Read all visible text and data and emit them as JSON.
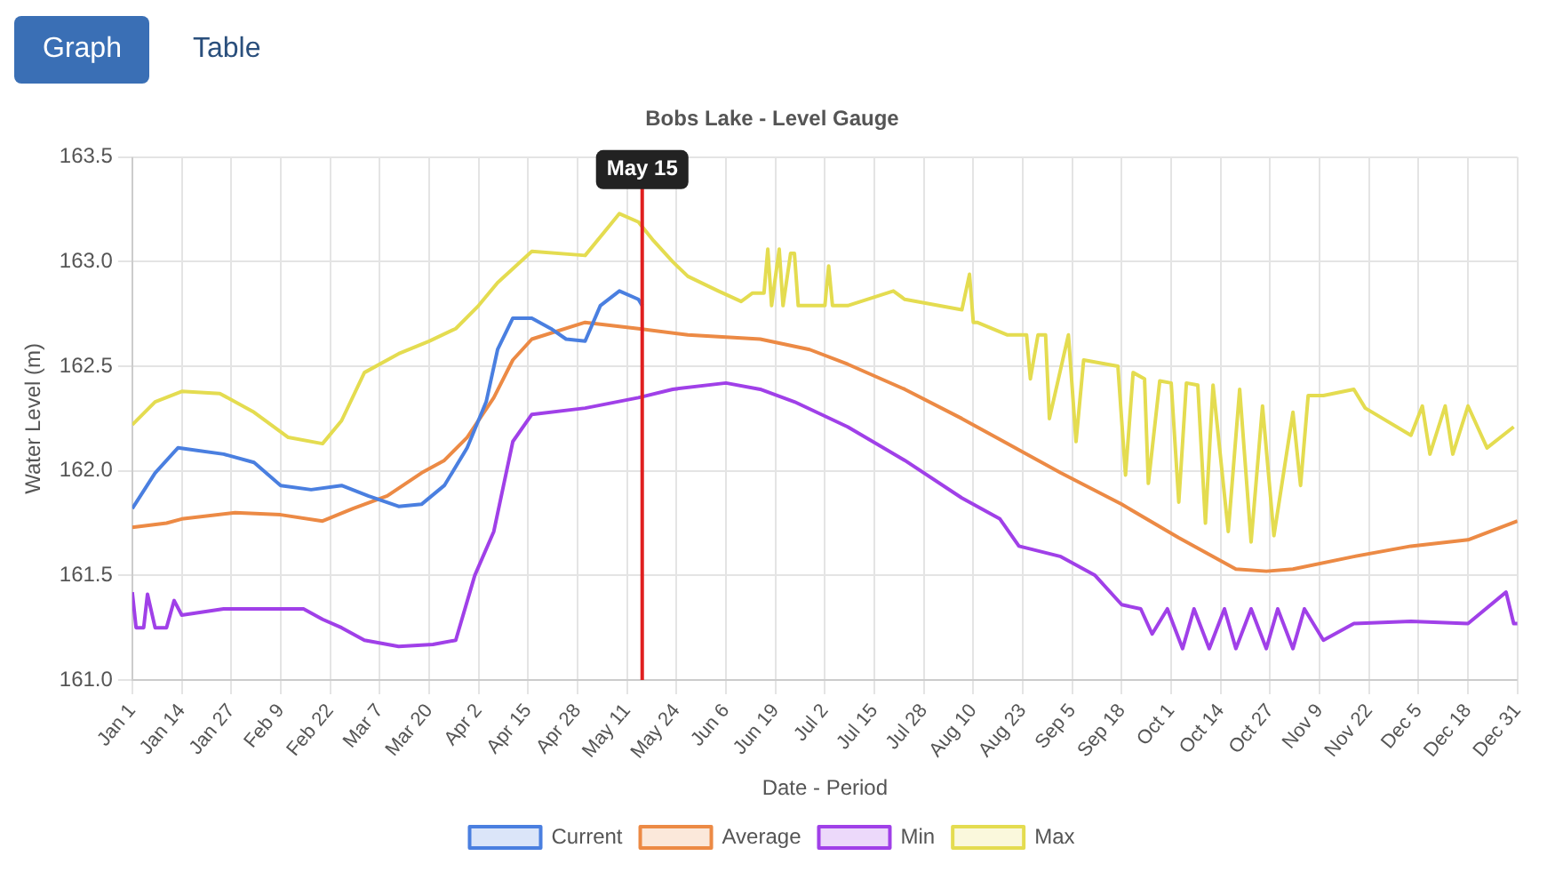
{
  "chart_data": {
    "type": "line",
    "title": "Bobs Lake - Level Gauge",
    "xlabel": "Date - Period",
    "ylabel": "Water Level (m)",
    "annotations": [
      "Graph",
      "Table"
    ],
    "xlim": [
      "--01-01",
      "--12-31"
    ],
    "xticks": [
      {
        "value": "--01-01",
        "label": "Jan 1"
      },
      {
        "value": "--01-14",
        "label": "Jan 14"
      },
      {
        "value": "--01-27",
        "label": "Jan 27"
      },
      {
        "value": "--02-09",
        "label": "Feb 9"
      },
      {
        "value": "--02-22",
        "label": "Feb 22"
      },
      {
        "value": "--03-07",
        "label": "Mar 7"
      },
      {
        "value": "--03-20",
        "label": "Mar 20"
      },
      {
        "value": "--04-02",
        "label": "Apr 2"
      },
      {
        "value": "--04-15",
        "label": "Apr 15"
      },
      {
        "value": "--04-28",
        "label": "Apr 28"
      },
      {
        "value": "--05-11",
        "label": "May 11"
      },
      {
        "value": "--05-24",
        "label": "May 24"
      },
      {
        "value": "--06-06",
        "label": "Jun 6"
      },
      {
        "value": "--06-19",
        "label": "Jun 19"
      },
      {
        "value": "--07-02",
        "label": "Jul 2"
      },
      {
        "value": "--07-15",
        "label": "Jul 15"
      },
      {
        "value": "--07-28",
        "label": "Jul 28"
      },
      {
        "value": "--08-10",
        "label": "Aug 10"
      },
      {
        "value": "--08-23",
        "label": "Aug 23"
      },
      {
        "value": "--09-05",
        "label": "Sep 5"
      },
      {
        "value": "--09-18",
        "label": "Sep 18"
      },
      {
        "value": "--10-01",
        "label": "Oct 1"
      },
      {
        "value": "--10-14",
        "label": "Oct 14"
      },
      {
        "value": "--10-27",
        "label": "Oct 27"
      },
      {
        "value": "--11-09",
        "label": "Nov 9"
      },
      {
        "value": "--11-22",
        "label": "Nov 22"
      },
      {
        "value": "--12-05",
        "label": "Dec 5"
      },
      {
        "value": "--12-18",
        "label": "Dec 18"
      },
      {
        "value": "--12-31",
        "label": "Dec 31"
      }
    ],
    "ylim": [
      161,
      163.5
    ],
    "yticks": [
      {
        "value": 161,
        "label": "161.0"
      },
      {
        "value": 161.5,
        "label": "161.5"
      },
      {
        "value": 162,
        "label": "162.0"
      },
      {
        "value": 162.5,
        "label": "162.5"
      },
      {
        "value": 163,
        "label": "163.0"
      },
      {
        "value": 163.5,
        "label": "163.5"
      }
    ],
    "grid": true,
    "legend": "bottom",
    "marker": "none",
    "line_style": "solid",
    "ref_lines": [
      {
        "axis": "x",
        "value": "--05-15",
        "label": "May 15",
        "color": "#e02020"
      }
    ],
    "series": [
      {
        "name": "Current",
        "color": "#4a7fe0",
        "x": [
          "--01-01",
          "--01-07",
          "--01-13",
          "--01-25",
          "--02-02",
          "--02-09",
          "--02-17",
          "--02-25",
          "--03-04",
          "--03-12",
          "--03-18",
          "--03-24",
          "--03-30",
          "--04-04",
          "--04-07",
          "--04-11",
          "--04-16",
          "--04-21",
          "--04-25",
          "--04-30",
          "--05-04",
          "--05-09",
          "--05-14",
          "--05-15"
        ],
        "values": [
          161.82,
          161.99,
          162.11,
          162.08,
          162.04,
          161.93,
          161.91,
          161.93,
          161.88,
          161.83,
          161.84,
          161.93,
          162.11,
          162.33,
          162.58,
          162.73,
          162.73,
          162.68,
          162.63,
          162.62,
          162.79,
          162.86,
          162.82,
          162.79
        ]
      },
      {
        "name": "Average",
        "color": "#ec8a45",
        "x": [
          "--01-01",
          "--01-10",
          "--01-14",
          "--01-28",
          "--02-09",
          "--02-20",
          "--02-28",
          "--03-09",
          "--03-18",
          "--03-24",
          "--03-30",
          "--04-06",
          "--04-11",
          "--04-16",
          "--04-30",
          "--05-14",
          "--05-27",
          "--06-15",
          "--06-28",
          "--07-08",
          "--07-23",
          "--08-07",
          "--08-18",
          "--09-02",
          "--09-18",
          "--10-03",
          "--10-18",
          "--10-26",
          "--11-02",
          "--11-18",
          "--12-03",
          "--12-18",
          "--12-31"
        ],
        "values": [
          161.73,
          161.75,
          161.77,
          161.8,
          161.79,
          161.76,
          161.82,
          161.88,
          161.99,
          162.05,
          162.16,
          162.35,
          162.53,
          162.63,
          162.71,
          162.68,
          162.65,
          162.63,
          162.58,
          162.51,
          162.39,
          162.25,
          162.14,
          161.99,
          161.84,
          161.68,
          161.53,
          161.52,
          161.53,
          161.59,
          161.64,
          161.67,
          161.76
        ]
      },
      {
        "name": "Min",
        "color": "#a040e8",
        "x": [
          "--01-01",
          "--01-02",
          "--01-04",
          "--01-05",
          "--01-07",
          "--01-10",
          "--01-12",
          "--01-14",
          "--01-25",
          "--02-06",
          "--02-15",
          "--02-20",
          "--02-25",
          "--03-03",
          "--03-12",
          "--03-21",
          "--03-27",
          "--04-01",
          "--04-06",
          "--04-11",
          "--04-16",
          "--04-30",
          "--05-14",
          "--05-23",
          "--06-06",
          "--06-15",
          "--06-24",
          "--07-08",
          "--07-23",
          "--08-07",
          "--08-17",
          "--08-22",
          "--09-02",
          "--09-11",
          "--09-18",
          "--09-23",
          "--09-26",
          "--09-30",
          "--10-04",
          "--10-07",
          "--10-11",
          "--10-15",
          "--10-18",
          "--10-22",
          "--10-26",
          "--10-29",
          "--11-02",
          "--11-05",
          "--11-10",
          "--11-18",
          "--12-03",
          "--12-18",
          "--12-28",
          "--12-30",
          "--12-31"
        ],
        "values": [
          161.42,
          161.25,
          161.25,
          161.41,
          161.25,
          161.25,
          161.38,
          161.31,
          161.34,
          161.34,
          161.34,
          161.29,
          161.25,
          161.19,
          161.16,
          161.17,
          161.19,
          161.5,
          161.71,
          162.14,
          162.27,
          162.3,
          162.35,
          162.39,
          162.42,
          162.39,
          162.33,
          162.21,
          162.05,
          161.87,
          161.77,
          161.64,
          161.59,
          161.5,
          161.36,
          161.34,
          161.22,
          161.34,
          161.15,
          161.34,
          161.15,
          161.34,
          161.15,
          161.34,
          161.15,
          161.34,
          161.15,
          161.34,
          161.19,
          161.27,
          161.28,
          161.27,
          161.42,
          161.27,
          161.27
        ]
      },
      {
        "name": "Max",
        "color": "#e4dc50",
        "x": [
          "--01-01",
          "--01-07",
          "--01-14",
          "--01-24",
          "--02-02",
          "--02-11",
          "--02-20",
          "--02-25",
          "--03-03",
          "--03-12",
          "--03-20",
          "--03-27",
          "--04-02",
          "--04-07",
          "--04-16",
          "--04-30",
          "--05-09",
          "--05-14",
          "--05-18",
          "--05-23",
          "--05-27",
          "--06-04",
          "--06-10",
          "--06-13",
          "--06-16",
          "--06-17",
          "--06-18",
          "--06-20",
          "--06-21",
          "--06-23",
          "--06-24",
          "--06-25",
          "--07-02",
          "--07-03",
          "--07-04",
          "--07-08",
          "--07-20",
          "--07-23",
          "--08-07",
          "--08-09",
          "--08-10",
          "--08-11",
          "--08-19",
          "--08-24",
          "--08-25",
          "--08-27",
          "--08-29",
          "--08-30",
          "--09-04",
          "--09-06",
          "--09-08",
          "--09-17",
          "--09-19",
          "--09-21",
          "--09-24",
          "--09-25",
          "--09-28",
          "--10-01",
          "--10-03",
          "--10-05",
          "--10-08",
          "--10-10",
          "--10-12",
          "--10-16",
          "--10-19",
          "--10-22",
          "--10-25",
          "--10-28",
          "--11-02",
          "--11-04",
          "--11-06",
          "--11-10",
          "--11-18",
          "--11-21",
          "--12-03",
          "--12-06",
          "--12-08",
          "--12-12",
          "--12-14",
          "--12-18",
          "--12-23",
          "--12-30"
        ],
        "values": [
          162.22,
          162.33,
          162.38,
          162.37,
          162.28,
          162.16,
          162.13,
          162.24,
          162.47,
          162.56,
          162.62,
          162.68,
          162.79,
          162.9,
          163.05,
          163.03,
          163.23,
          163.19,
          163.1,
          163.0,
          162.93,
          162.86,
          162.81,
          162.85,
          162.85,
          163.06,
          162.79,
          163.06,
          162.79,
          163.04,
          163.04,
          162.79,
          162.79,
          162.98,
          162.79,
          162.79,
          162.86,
          162.82,
          162.77,
          162.94,
          162.71,
          162.71,
          162.65,
          162.65,
          162.44,
          162.65,
          162.65,
          162.25,
          162.65,
          162.14,
          162.53,
          162.5,
          161.98,
          162.47,
          162.44,
          161.94,
          162.43,
          162.42,
          161.85,
          162.42,
          162.41,
          161.75,
          162.41,
          161.71,
          162.39,
          161.66,
          162.31,
          161.69,
          162.28,
          161.93,
          162.36,
          162.36,
          162.39,
          162.3,
          162.17,
          162.31,
          162.08,
          162.31,
          162.08,
          162.31,
          162.11,
          162.21
        ]
      }
    ]
  }
}
